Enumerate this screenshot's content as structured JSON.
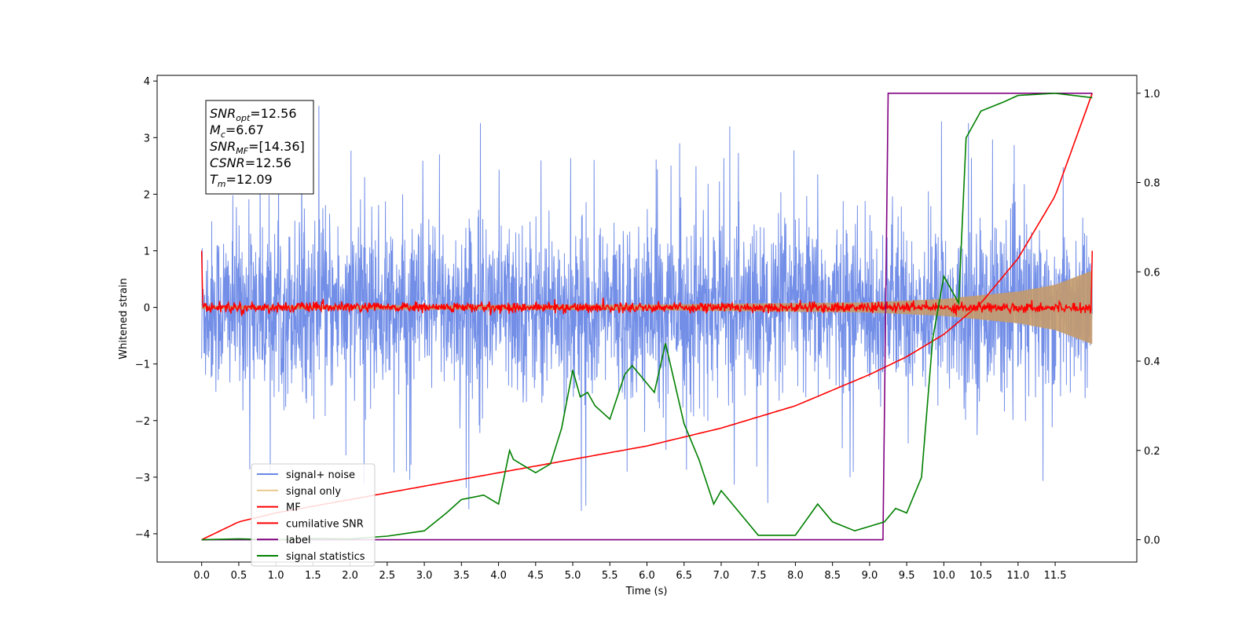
{
  "chart_data": {
    "type": "line",
    "xlabel": "Time (s)",
    "ylabel": "Whitened strain",
    "x_ticks": [
      "0.0",
      "0.5",
      "1.0",
      "1.5",
      "2.0",
      "2.5",
      "3.0",
      "3.5",
      "4.0",
      "4.5",
      "5.0",
      "5.5",
      "6.0",
      "6.5",
      "7.0",
      "7.5",
      "8.0",
      "8.5",
      "9.0",
      "9.5",
      "10.0",
      "10.5",
      "11.0",
      "11.5"
    ],
    "xlim": [
      -0.6,
      12.6
    ],
    "ylim_left": [
      -4.5,
      4.1
    ],
    "y_ticks_left": [
      "4",
      "3",
      "2",
      "1",
      "0",
      "−1",
      "−2",
      "−3",
      "−4"
    ],
    "ylim_right": [
      -0.05,
      1.04
    ],
    "y_ticks_right": [
      "1.0",
      "0.8",
      "0.6",
      "0.4",
      "0.2",
      "0.0"
    ],
    "grid": false,
    "legend_position": "lower-left",
    "stats_box": [
      {
        "main": "SNR",
        "sub": "opt",
        "value": "=12.56"
      },
      {
        "main": "M",
        "sub": "c",
        "value": "=6.67"
      },
      {
        "main": "SNR",
        "sub": "MF",
        "value": "=[14.36]"
      },
      {
        "main": "CSNR",
        "sub": "",
        "value": "=12.56"
      },
      {
        "main": "T",
        "sub": "m",
        "value": "=12.09"
      }
    ],
    "series": [
      {
        "name": "signal+ noise",
        "color": "#6a88e6",
        "axis": "left",
        "description_values": {
          "noise_band": [
            -2.0,
            2.0
          ],
          "x_range": [
            0.0,
            12.0
          ]
        }
      },
      {
        "name": "signal only",
        "color": "#e8c88a",
        "axis": "left",
        "envelope": {
          "x": [
            0,
            6,
            9,
            10,
            11,
            11.5,
            12.0
          ],
          "amplitude": [
            0.03,
            0.05,
            0.09,
            0.15,
            0.28,
            0.4,
            0.65
          ]
        }
      },
      {
        "name": "MF",
        "color": "#ff0000",
        "axis": "left",
        "level": 0.0,
        "endpoints": 1.0
      },
      {
        "name": "cumilative SNR",
        "color": "#ff0000",
        "axis": "right",
        "x": [
          0.0,
          0.5,
          1.0,
          2.0,
          3.0,
          4.0,
          5.0,
          6.0,
          7.0,
          8.0,
          9.0,
          9.5,
          10.0,
          10.5,
          11.0,
          11.5,
          12.0
        ],
        "y": [
          0.0,
          0.04,
          0.06,
          0.09,
          0.12,
          0.15,
          0.18,
          0.21,
          0.25,
          0.3,
          0.37,
          0.41,
          0.46,
          0.53,
          0.63,
          0.77,
          1.0
        ]
      },
      {
        "name": "label",
        "color": "#800080",
        "axis": "right",
        "x": [
          0.0,
          9.18,
          9.25,
          12.0
        ],
        "y": [
          0.0,
          0.0,
          1.0,
          1.0
        ]
      },
      {
        "name": "signal statistics",
        "color": "#008000",
        "axis": "right",
        "x": [
          0.0,
          0.5,
          1.0,
          1.5,
          2.0,
          2.5,
          3.0,
          3.3,
          3.5,
          3.8,
          4.0,
          4.15,
          4.2,
          4.3,
          4.5,
          4.7,
          4.85,
          5.0,
          5.1,
          5.2,
          5.3,
          5.5,
          5.7,
          5.8,
          5.95,
          6.1,
          6.25,
          6.5,
          6.7,
          6.9,
          7.0,
          7.2,
          7.5,
          7.8,
          8.0,
          8.3,
          8.5,
          8.8,
          9.0,
          9.2,
          9.35,
          9.5,
          9.7,
          9.85,
          10.0,
          10.2,
          10.3,
          10.5,
          10.8,
          11.0,
          11.5,
          12.0
        ],
        "y": [
          0.0,
          0.002,
          0.0,
          0.003,
          0.002,
          0.008,
          0.02,
          0.06,
          0.09,
          0.1,
          0.08,
          0.2,
          0.18,
          0.17,
          0.15,
          0.17,
          0.25,
          0.38,
          0.32,
          0.33,
          0.3,
          0.27,
          0.37,
          0.39,
          0.36,
          0.33,
          0.44,
          0.26,
          0.18,
          0.08,
          0.11,
          0.07,
          0.01,
          0.01,
          0.01,
          0.08,
          0.04,
          0.02,
          0.03,
          0.04,
          0.07,
          0.06,
          0.14,
          0.45,
          0.59,
          0.53,
          0.9,
          0.96,
          0.98,
          0.995,
          1.0,
          0.99
        ]
      }
    ]
  }
}
